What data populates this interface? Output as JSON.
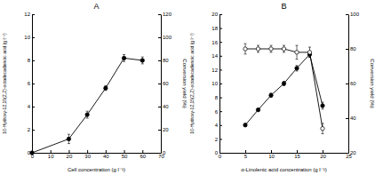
{
  "chart_data": [
    {
      "type": "line",
      "title": "A",
      "xlabel": "Cell concentration (g l⁻¹)",
      "ylabel": "10-Hydroxy-12,15(Z,Z)-octadecadienoic acid (g l⁻¹)",
      "y2label": "Conversion yield (%)",
      "x": [
        0,
        20,
        30,
        40,
        50,
        60
      ],
      "xlim": [
        0,
        70
      ],
      "xticks": [
        0,
        10,
        20,
        30,
        40,
        50,
        60,
        70
      ],
      "ylim": [
        0,
        12
      ],
      "yticks": [
        0,
        2,
        4,
        6,
        8,
        10,
        12
      ],
      "y2lim": [
        0,
        120
      ],
      "y2ticks": [
        0,
        20,
        40,
        60,
        80,
        100,
        120
      ],
      "series": [
        {
          "axis": "y2",
          "color": "#000000",
          "marker": "circle",
          "line_style": "solid",
          "values": [
            0,
            12,
            33,
            56,
            82,
            80
          ],
          "errors": [
            0,
            4,
            3,
            2,
            3,
            3
          ]
        }
      ]
    },
    {
      "type": "line",
      "title": "B",
      "xlabel": "α-Linolenic acid concentration (g l⁻¹)",
      "ylabel": "10-Hydroxy-12,15(Z,Z)-octadecadienoic acid (g l⁻¹)",
      "y2label": "Conversion yield (%)",
      "x": [
        5,
        7.5,
        10,
        12.5,
        15,
        17.5,
        20
      ],
      "xlim": [
        0,
        25
      ],
      "xticks": [
        0,
        5,
        10,
        15,
        20,
        25
      ],
      "ylim": [
        0,
        20
      ],
      "yticks": [
        0,
        2,
        4,
        6,
        8,
        10,
        12,
        14,
        16,
        18,
        20
      ],
      "y2lim": [
        20,
        100
      ],
      "y2ticks": [
        20,
        40,
        60,
        80,
        100
      ],
      "series": [
        {
          "color": "#000000",
          "marker": "circle",
          "line_style": "solid",
          "values": [
            4,
            6.2,
            8.3,
            10,
            12.2,
            14.2,
            6.8
          ],
          "errors": [
            0.2,
            0.2,
            0.3,
            0.3,
            0.4,
            0.4,
            0.5
          ]
        },
        {
          "axis": "y2",
          "color": "#000000",
          "marker": "open_circle",
          "line_style": "solid",
          "values": [
            80,
            80,
            80,
            80,
            78,
            78,
            34
          ],
          "errors": [
            3,
            2,
            2,
            2,
            4,
            3,
            3
          ]
        }
      ]
    }
  ]
}
